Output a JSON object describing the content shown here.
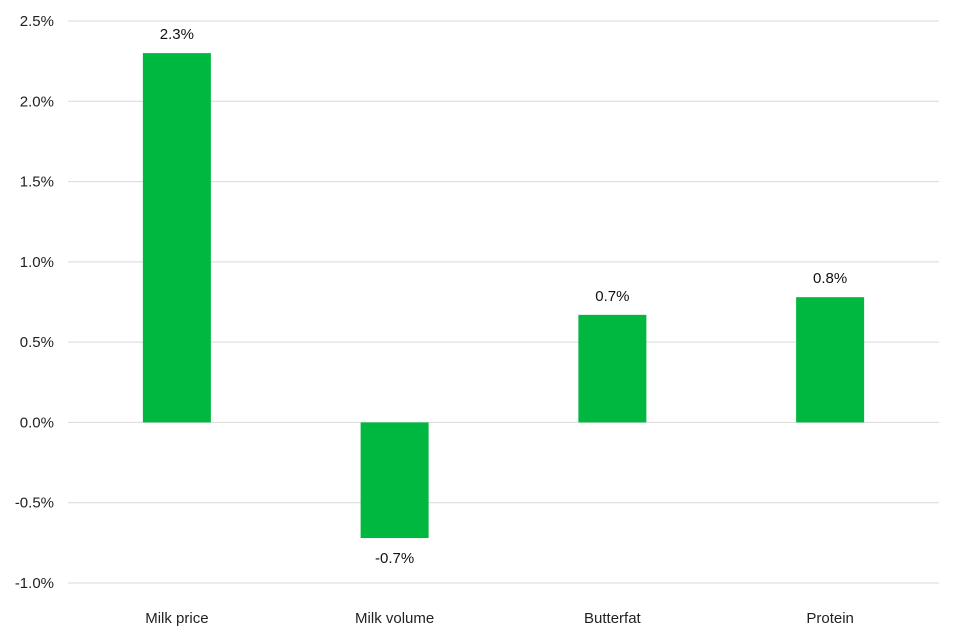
{
  "chart_data": {
    "type": "bar",
    "title": "",
    "xlabel": "",
    "ylabel": "",
    "categories": [
      "Milk price",
      "Milk volume",
      "Butterfat",
      "Protein"
    ],
    "values": [
      2.3,
      -0.72,
      0.67,
      0.78
    ],
    "data_labels": [
      "2.3%",
      "-0.7%",
      "0.7%",
      "0.8%"
    ],
    "ylim": [
      -1.0,
      2.5
    ],
    "yticks": [
      2.5,
      2.0,
      1.5,
      1.0,
      0.5,
      0.0,
      -0.5,
      -1.0
    ],
    "ytick_labels": [
      "2.5%",
      "2.0%",
      "1.5%",
      "1.0%",
      "0.5%",
      "0.0%",
      "-0.5%",
      "-1.0%"
    ],
    "grid": true,
    "legend": "none",
    "bar_color": "#00b83f",
    "grid_color": "#d9d9d9"
  }
}
